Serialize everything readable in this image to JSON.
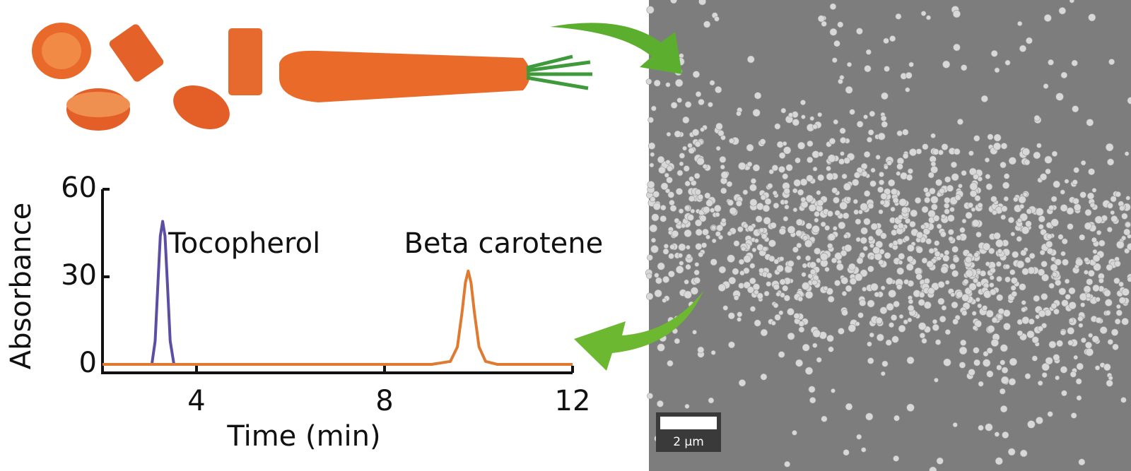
{
  "chart_data": {
    "type": "line",
    "x_label": "Time (min)",
    "y_label": "Absorbance",
    "xlim": [
      2,
      12
    ],
    "xticks": [
      4,
      8,
      12
    ],
    "ylim": [
      0,
      60
    ],
    "yticks": [
      0,
      30,
      60
    ],
    "series": [
      {
        "name": "Tocopherol",
        "color": "#5b4ea3",
        "x": [
          3.05,
          3.12,
          3.18,
          3.23,
          3.28,
          3.33,
          3.38,
          3.44,
          3.52
        ],
        "values": [
          0,
          8,
          28,
          44,
          49,
          44,
          28,
          8,
          0
        ]
      },
      {
        "name": "Beta carotene",
        "color": "#e07a30",
        "x": [
          2,
          3,
          4,
          5,
          6,
          7,
          8,
          9,
          9.4,
          9.55,
          9.65,
          9.72,
          9.78,
          9.84,
          9.91,
          10.01,
          10.15,
          10.4,
          11,
          12
        ],
        "values": [
          0,
          0,
          0,
          0,
          0,
          0,
          0,
          0,
          1,
          6,
          18,
          28,
          32,
          28,
          18,
          6,
          1,
          0,
          0,
          0
        ]
      }
    ]
  },
  "image": {
    "scale_bar": "2 μm"
  }
}
